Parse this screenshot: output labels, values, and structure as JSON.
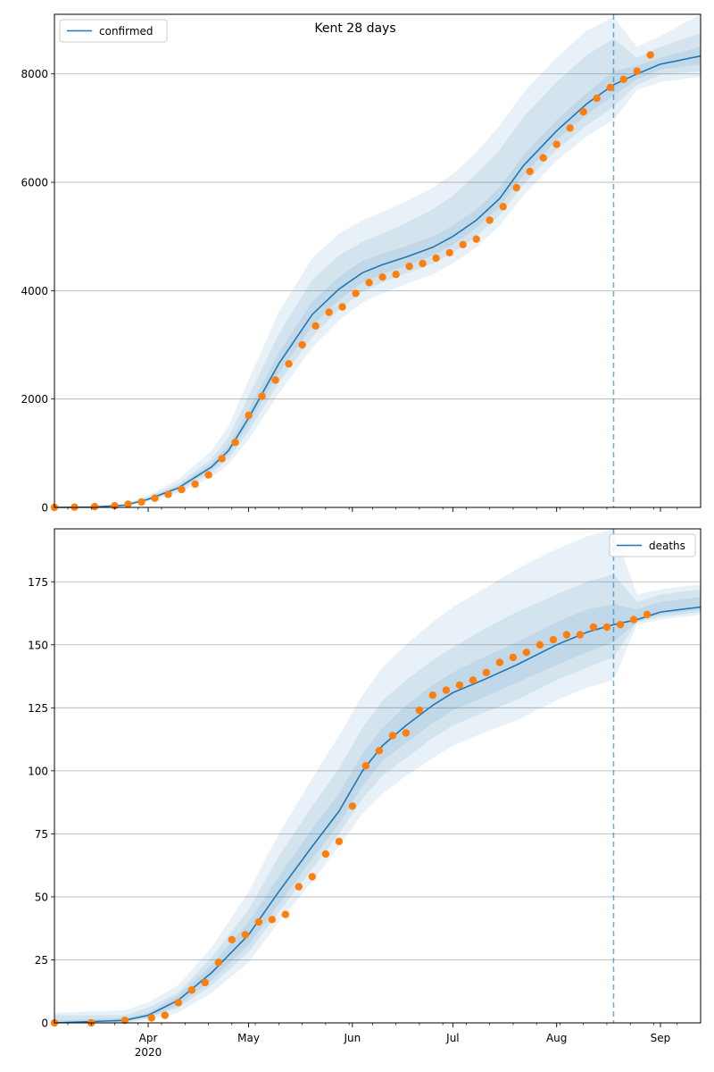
{
  "title": "Kent 28 days",
  "colors": {
    "model": "#1f77b4",
    "observed": "#ff7f0e",
    "band": "#1f77b4",
    "grid": "#b0b0b0",
    "cutoff": "#1f77b4"
  },
  "x_axis": {
    "ticks": [
      {
        "date": "2020-04-01",
        "label": "Apr"
      },
      {
        "date": "2020-05-01",
        "label": "May"
      },
      {
        "date": "2020-06-01",
        "label": "Jun"
      },
      {
        "date": "2020-07-01",
        "label": "Jul"
      },
      {
        "date": "2020-08-01",
        "label": "Aug"
      },
      {
        "date": "2020-09-01",
        "label": "Sep"
      }
    ],
    "year_label": "2020",
    "minor_ticks": [
      "2020-03-08",
      "2020-03-15",
      "2020-03-22",
      "2020-03-29",
      "2020-04-05",
      "2020-04-12",
      "2020-04-19",
      "2020-04-26",
      "2020-05-03",
      "2020-05-10",
      "2020-05-17",
      "2020-05-24",
      "2020-05-31",
      "2020-06-07",
      "2020-06-14",
      "2020-06-21",
      "2020-06-28",
      "2020-07-05",
      "2020-07-12",
      "2020-07-19",
      "2020-07-26",
      "2020-08-02",
      "2020-08-09",
      "2020-08-16",
      "2020-08-23",
      "2020-08-30",
      "2020-09-06"
    ]
  },
  "chart_data": [
    {
      "type": "line",
      "name": "confirmed-panel",
      "legend": "confirmed",
      "legend_position": "top-left",
      "xlim": [
        "2020-03-04",
        "2020-09-13"
      ],
      "ylim": [
        0,
        9100
      ],
      "yticks": [
        0,
        2000,
        4000,
        6000,
        8000
      ],
      "grid": "horizontal",
      "forecast_start": "2020-08-18",
      "model": {
        "x": [
          "2020-03-04",
          "2020-03-15",
          "2020-03-25",
          "2020-04-01",
          "2020-04-10",
          "2020-04-20",
          "2020-04-25",
          "2020-05-01",
          "2020-05-10",
          "2020-05-20",
          "2020-05-28",
          "2020-06-04",
          "2020-06-10",
          "2020-06-17",
          "2020-06-25",
          "2020-07-01",
          "2020-07-08",
          "2020-07-15",
          "2020-07-22",
          "2020-08-01",
          "2020-08-10",
          "2020-08-18",
          "2020-08-25",
          "2020-09-01",
          "2020-09-13"
        ],
        "y": [
          0,
          5,
          40,
          150,
          360,
          750,
          1050,
          1650,
          2650,
          3560,
          4030,
          4330,
          4480,
          4620,
          4800,
          5000,
          5300,
          5700,
          6300,
          6950,
          7450,
          7800,
          8000,
          8180,
          8330
        ]
      },
      "bands": [
        {
          "lo": [
            0,
            0,
            25,
            105,
            260,
            560,
            800,
            1250,
            2100,
            2950,
            3450,
            3780,
            3950,
            4120,
            4300,
            4500,
            4800,
            5200,
            5750,
            6400,
            6850,
            7150,
            7700,
            7850,
            7950
          ],
          "hi": [
            15,
            30,
            70,
            220,
            520,
            1050,
            1500,
            2350,
            3600,
            4600,
            5050,
            5300,
            5450,
            5650,
            5900,
            6150,
            6550,
            7050,
            7650,
            8300,
            8800,
            9050,
            8500,
            8700,
            9100
          ]
        },
        {
          "lo": [
            0,
            2,
            30,
            120,
            300,
            640,
            900,
            1400,
            2300,
            3150,
            3650,
            3980,
            4150,
            4320,
            4500,
            4700,
            5000,
            5400,
            5950,
            6600,
            7050,
            7400,
            7800,
            7980,
            8050
          ],
          "hi": [
            10,
            20,
            60,
            190,
            440,
            900,
            1300,
            2050,
            3200,
            4200,
            4650,
            4900,
            5050,
            5250,
            5500,
            5750,
            6150,
            6600,
            7200,
            7850,
            8350,
            8650,
            8300,
            8500,
            8750
          ]
        },
        {
          "lo": [
            0,
            3,
            35,
            135,
            330,
            700,
            980,
            1530,
            2480,
            3350,
            3830,
            4150,
            4310,
            4460,
            4650,
            4850,
            5150,
            5550,
            6120,
            6780,
            7250,
            7600,
            7900,
            8080,
            8180
          ],
          "hi": [
            8,
            12,
            50,
            170,
            400,
            820,
            1150,
            1800,
            2850,
            3800,
            4250,
            4550,
            4680,
            4820,
            5000,
            5200,
            5500,
            5900,
            6500,
            7150,
            7650,
            8050,
            8150,
            8300,
            8500
          ]
        }
      ],
      "observed": {
        "x": [
          "2020-03-04",
          "2020-03-10",
          "2020-03-16",
          "2020-03-22",
          "2020-03-26",
          "2020-03-30",
          "2020-04-03",
          "2020-04-07",
          "2020-04-11",
          "2020-04-15",
          "2020-04-19",
          "2020-04-23",
          "2020-04-27",
          "2020-05-01",
          "2020-05-05",
          "2020-05-09",
          "2020-05-13",
          "2020-05-17",
          "2020-05-21",
          "2020-05-25",
          "2020-05-29",
          "2020-06-02",
          "2020-06-06",
          "2020-06-10",
          "2020-06-14",
          "2020-06-18",
          "2020-06-22",
          "2020-06-26",
          "2020-06-30",
          "2020-07-04",
          "2020-07-08",
          "2020-07-12",
          "2020-07-16",
          "2020-07-20",
          "2020-07-24",
          "2020-07-28",
          "2020-08-01",
          "2020-08-05",
          "2020-08-09",
          "2020-08-13",
          "2020-08-17",
          "2020-08-21",
          "2020-08-25",
          "2020-08-29"
        ],
        "y": [
          0,
          5,
          15,
          30,
          60,
          100,
          170,
          240,
          330,
          430,
          600,
          900,
          1200,
          1700,
          2050,
          2350,
          2650,
          3000,
          3350,
          3600,
          3700,
          3950,
          4150,
          4250,
          4300,
          4450,
          4500,
          4600,
          4700,
          4850,
          4950,
          5300,
          5550,
          5900,
          6200,
          6450,
          6700,
          7000,
          7300,
          7550,
          7750,
          7900,
          8050,
          8350
        ]
      }
    },
    {
      "type": "line",
      "name": "deaths-panel",
      "legend": "deaths",
      "legend_position": "top-right",
      "xlim": [
        "2020-03-04",
        "2020-09-13"
      ],
      "ylim": [
        0,
        196
      ],
      "yticks": [
        0,
        25,
        50,
        75,
        100,
        125,
        150,
        175
      ],
      "grid": "horizontal",
      "forecast_start": "2020-08-18",
      "model": {
        "x": [
          "2020-03-04",
          "2020-03-25",
          "2020-04-01",
          "2020-04-10",
          "2020-04-20",
          "2020-05-01",
          "2020-05-10",
          "2020-05-20",
          "2020-05-28",
          "2020-06-04",
          "2020-06-10",
          "2020-06-17",
          "2020-06-25",
          "2020-07-01",
          "2020-07-10",
          "2020-07-20",
          "2020-08-01",
          "2020-08-10",
          "2020-08-18",
          "2020-08-25",
          "2020-09-01",
          "2020-09-13"
        ],
        "y": [
          0,
          1,
          3,
          9,
          20,
          35,
          52,
          70,
          84,
          100,
          110,
          118,
          126,
          131,
          136,
          142,
          150,
          155,
          158,
          160,
          163,
          165
        ]
      },
      "bands": [
        {
          "lo": [
            0,
            0,
            1,
            4,
            12,
            24,
            40,
            56,
            70,
            83,
            91,
            98,
            105,
            110,
            115,
            120,
            128,
            133,
            136,
            158,
            160,
            162
          ],
          "hi": [
            4,
            5,
            8,
            15,
            30,
            52,
            75,
            97,
            114,
            130,
            141,
            150,
            159,
            165,
            172,
            180,
            188,
            193,
            196,
            170,
            172,
            174
          ]
        },
        {
          "lo": [
            0,
            0,
            2,
            6,
            15,
            28,
            44,
            61,
            75,
            89,
            98,
            105,
            113,
            118,
            123,
            128,
            136,
            141,
            145,
            159,
            161,
            163
          ],
          "hi": [
            3,
            3,
            6,
            12,
            26,
            45,
            66,
            86,
            101,
            117,
            128,
            136,
            144,
            149,
            156,
            163,
            170,
            175,
            178,
            167,
            170,
            172
          ]
        },
        {
          "lo": [
            0,
            1,
            2,
            7,
            17,
            31,
            47,
            65,
            79,
            94,
            104,
            111,
            119,
            124,
            129,
            135,
            142,
            147,
            151,
            159,
            162,
            164
          ],
          "hi": [
            1,
            2,
            4,
            11,
            23,
            40,
            58,
            77,
            91,
            107,
            117,
            126,
            134,
            139,
            145,
            151,
            159,
            164,
            166,
            164,
            167,
            169
          ]
        }
      ],
      "observed": {
        "x": [
          "2020-03-04",
          "2020-03-15",
          "2020-03-25",
          "2020-04-02",
          "2020-04-06",
          "2020-04-10",
          "2020-04-14",
          "2020-04-18",
          "2020-04-22",
          "2020-04-26",
          "2020-04-30",
          "2020-05-04",
          "2020-05-08",
          "2020-05-12",
          "2020-05-16",
          "2020-05-20",
          "2020-05-24",
          "2020-05-28",
          "2020-06-01",
          "2020-06-05",
          "2020-06-09",
          "2020-06-13",
          "2020-06-17",
          "2020-06-21",
          "2020-06-25",
          "2020-06-29",
          "2020-07-03",
          "2020-07-07",
          "2020-07-11",
          "2020-07-15",
          "2020-07-19",
          "2020-07-23",
          "2020-07-27",
          "2020-07-31",
          "2020-08-04",
          "2020-08-08",
          "2020-08-12",
          "2020-08-16",
          "2020-08-20",
          "2020-08-24",
          "2020-08-28"
        ],
        "y": [
          0,
          0,
          1,
          2,
          3,
          8,
          13,
          16,
          24,
          33,
          35,
          40,
          41,
          43,
          54,
          58,
          67,
          72,
          86,
          102,
          108,
          114,
          115,
          124,
          130,
          132,
          134,
          136,
          139,
          143,
          145,
          147,
          150,
          152,
          154,
          154,
          157,
          157,
          158,
          160,
          162
        ]
      }
    }
  ]
}
